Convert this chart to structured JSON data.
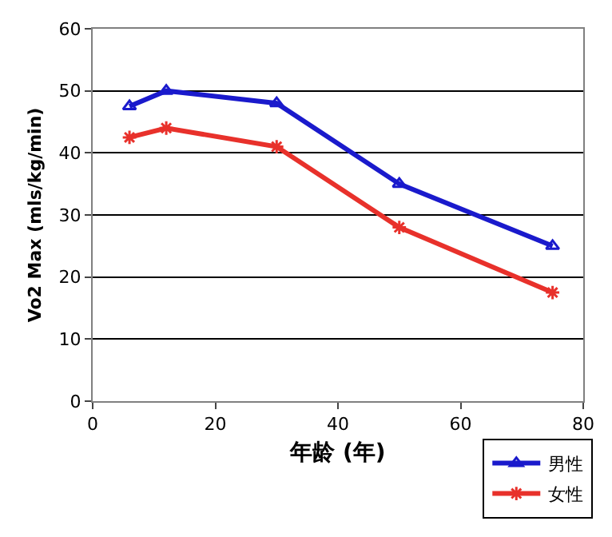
{
  "chart_data": {
    "type": "line",
    "xlabel": "年龄 (年)",
    "ylabel": "Vo2 Max (mls/kg/min)",
    "xlim": [
      0,
      80
    ],
    "xticks": [
      0,
      20,
      40,
      60,
      80
    ],
    "ylim": [
      0,
      60
    ],
    "yticks": [
      0,
      10,
      20,
      30,
      40,
      50,
      60
    ],
    "grid": "y",
    "legend": "bottom right",
    "series": [
      {
        "name": "男性",
        "color": "#1a1acc",
        "marker": "triangle",
        "x": [
          6,
          12,
          30,
          50,
          75
        ],
        "values": [
          47.5,
          50,
          48,
          35,
          25
        ]
      },
      {
        "name": "女性",
        "color": "#e8312b",
        "marker": "cross",
        "x": [
          6,
          12,
          30,
          50,
          75
        ],
        "values": [
          42.5,
          44,
          41,
          28,
          17.5
        ]
      }
    ]
  }
}
